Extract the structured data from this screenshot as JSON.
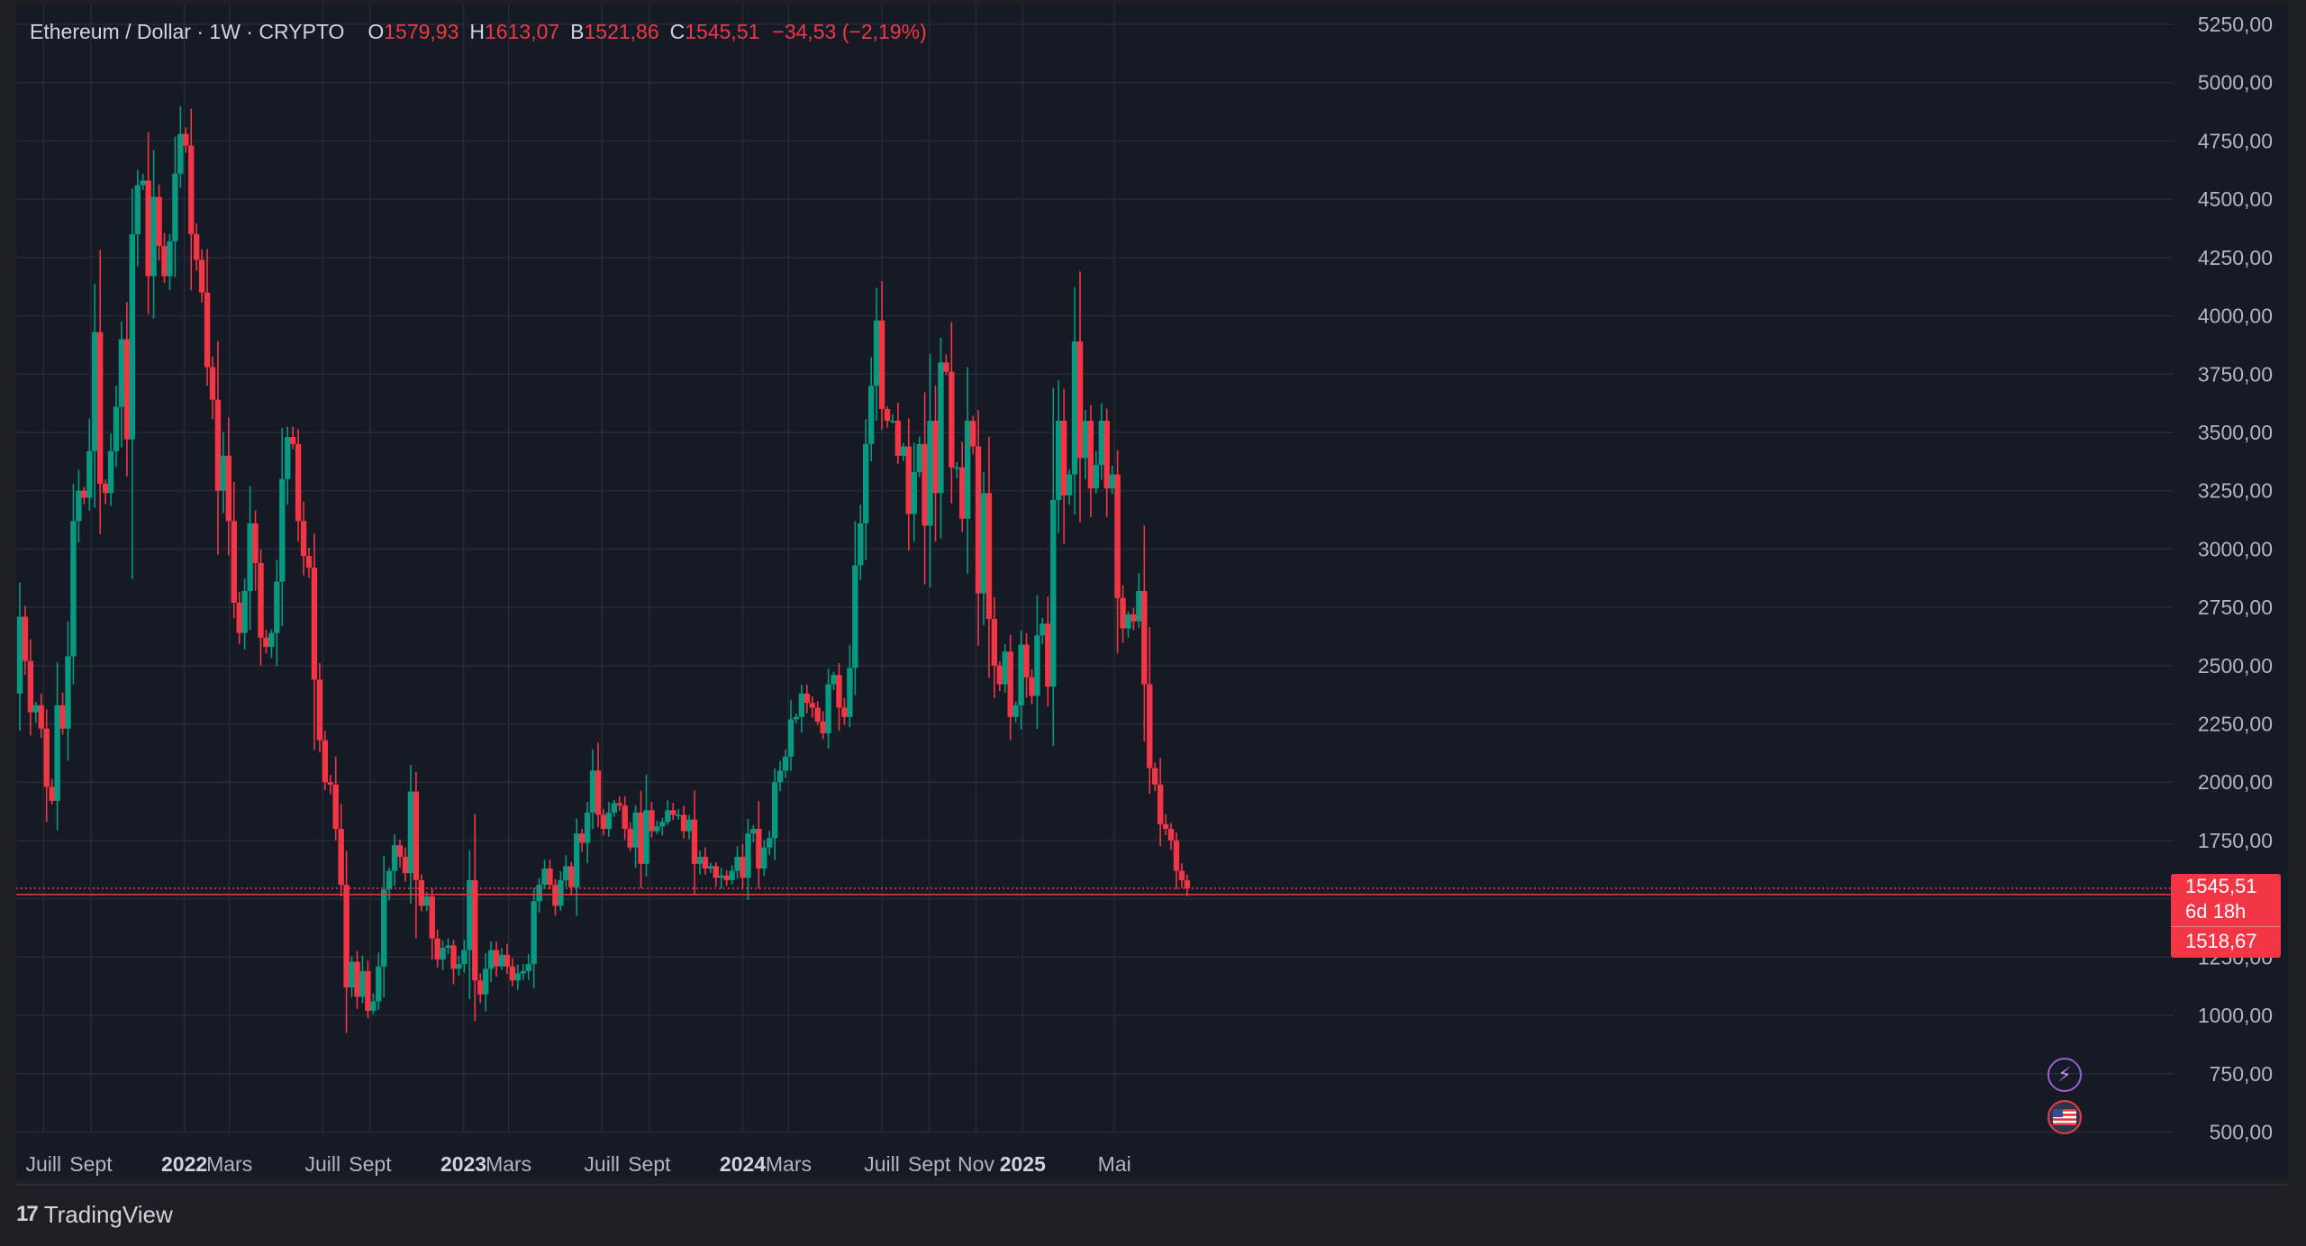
{
  "header": {
    "symbol": "Ethereum / Dollar · 1W · CRYPTO",
    "open_key": "O",
    "open": "1579,93",
    "high_key": "H",
    "high": "1613,07",
    "low_key": "B",
    "low": "1521,86",
    "close_key": "C",
    "close": "1545,51",
    "change": "−34,53 (−2,19%)"
  },
  "price_tag": {
    "last_price": "1545,51",
    "countdown": "6d 18h",
    "low_price": "1518,67"
  },
  "footer": {
    "brand_mark": "17",
    "brand": "TradingView"
  },
  "icons": {
    "flash": "lightning-icon",
    "flag": "us-flag-icon"
  },
  "colors": {
    "background": "#161a25",
    "grid": "#262a36",
    "up": "#089981",
    "down": "#f23645",
    "text": "#d1d4dc",
    "axis_text": "#b2b5be"
  },
  "chart_data": {
    "type": "candlestick",
    "title": "Ethereum / Dollar · 1W · CRYPTO",
    "ylim": [
      500,
      5250
    ],
    "y_ticks": [
      500,
      750,
      1000,
      1250,
      1500,
      1750,
      2000,
      2250,
      2500,
      2750,
      3000,
      3250,
      3500,
      3750,
      4000,
      4250,
      4500,
      4750,
      5000,
      5250
    ],
    "y_tick_labels": [
      "500,00",
      "750,00",
      "1000,00",
      "1250,00",
      "1500,00",
      "1750,00",
      "2000,00",
      "2250,00",
      "2500,00",
      "2750,00",
      "3000,00",
      "3250,00",
      "3500,00",
      "3750,00",
      "4000,00",
      "4250,00",
      "4500,00",
      "4750,00",
      "5000,00",
      "5250,00"
    ],
    "x_start": "2021-05-31",
    "x_ticks": [
      {
        "label": "Juill",
        "date": "2021-07-01",
        "bold": false
      },
      {
        "label": "Sept",
        "date": "2021-09-01",
        "bold": false
      },
      {
        "label": "2022",
        "date": "2022-01-01",
        "bold": true
      },
      {
        "label": "Mars",
        "date": "2022-03-01",
        "bold": false
      },
      {
        "label": "Juill",
        "date": "2022-07-01",
        "bold": false
      },
      {
        "label": "Sept",
        "date": "2022-09-01",
        "bold": false
      },
      {
        "label": "2023",
        "date": "2023-01-01",
        "bold": true
      },
      {
        "label": "Mars",
        "date": "2023-03-01",
        "bold": false
      },
      {
        "label": "Juill",
        "date": "2023-07-01",
        "bold": false
      },
      {
        "label": "Sept",
        "date": "2023-09-01",
        "bold": false
      },
      {
        "label": "2024",
        "date": "2024-01-01",
        "bold": true
      },
      {
        "label": "Mars",
        "date": "2024-03-01",
        "bold": false
      },
      {
        "label": "Juill",
        "date": "2024-07-01",
        "bold": false
      },
      {
        "label": "Sept",
        "date": "2024-09-01",
        "bold": false
      },
      {
        "label": "Nov",
        "date": "2024-11-01",
        "bold": false
      },
      {
        "label": "2025",
        "date": "2025-01-01",
        "bold": true
      },
      {
        "label": "Mai",
        "date": "2025-05-01",
        "bold": false
      }
    ],
    "last_price_line": 1545.51,
    "low_price_line": 1518.67,
    "x_end": "2025-05-19",
    "closes": [
      2710,
      2520,
      2300,
      2330,
      2230,
      1980,
      1920,
      2330,
      2230,
      2540,
      3120,
      3250,
      3220,
      3420,
      3930,
      3280,
      3240,
      3420,
      3610,
      3900,
      3470,
      4350,
      4560,
      4580,
      4170,
      4510,
      4300,
      4170,
      4320,
      4610,
      4780,
      4730,
      4350,
      4240,
      4100,
      3780,
      3640,
      3250,
      3400,
      3120,
      2770,
      2640,
      2820,
      3110,
      2940,
      2620,
      2580,
      2640,
      2860,
      3300,
      3480,
      3450,
      3120,
      2970,
      2920,
      2440,
      2180,
      2000,
      1990,
      1800,
      1560,
      1120,
      1230,
      1080,
      1190,
      1020,
      1060,
      1210,
      1540,
      1620,
      1730,
      1680,
      1610,
      1960,
      1580,
      1470,
      1510,
      1330,
      1240,
      1290,
      1300,
      1200,
      1220,
      1280,
      1580,
      1150,
      1090,
      1200,
      1280,
      1210,
      1260,
      1210,
      1150,
      1180,
      1190,
      1220,
      1490,
      1560,
      1630,
      1560,
      1470,
      1580,
      1640,
      1550,
      1780,
      1740,
      1870,
      2050,
      1860,
      1800,
      1870,
      1910,
      1900,
      1800,
      1720,
      1870,
      1650,
      1880,
      1790,
      1810,
      1830,
      1880,
      1860,
      1860,
      1790,
      1840,
      1650,
      1680,
      1630,
      1640,
      1590,
      1600,
      1580,
      1620,
      1680,
      1590,
      1780,
      1800,
      1630,
      1720,
      1760,
      2000,
      2050,
      2110,
      2270,
      2280,
      2380,
      2340,
      2320,
      2260,
      2210,
      2420,
      2460,
      2320,
      2280,
      2490,
      2930,
      3110,
      3450,
      3700,
      3980,
      3600,
      3550,
      3550,
      3400,
      3440,
      3150,
      3330,
      3450,
      3100,
      3550,
      3240,
      3800,
      3760,
      3350,
      3350,
      3130,
      3550,
      3440,
      2810,
      3240,
      2700,
      2500,
      2420,
      2560,
      2280,
      2330,
      2590,
      2450,
      2370,
      2630,
      2680,
      2410,
      3210,
      3550,
      3230,
      3320,
      3890,
      3390,
      3550,
      3260,
      3360,
      3550,
      3260,
      3320,
      2790,
      2660,
      2720,
      2690,
      2820,
      2420,
      2060,
      1990,
      1820,
      1800,
      1750,
      1620,
      1580,
      1545.51
    ],
    "first_open": 2380
  }
}
